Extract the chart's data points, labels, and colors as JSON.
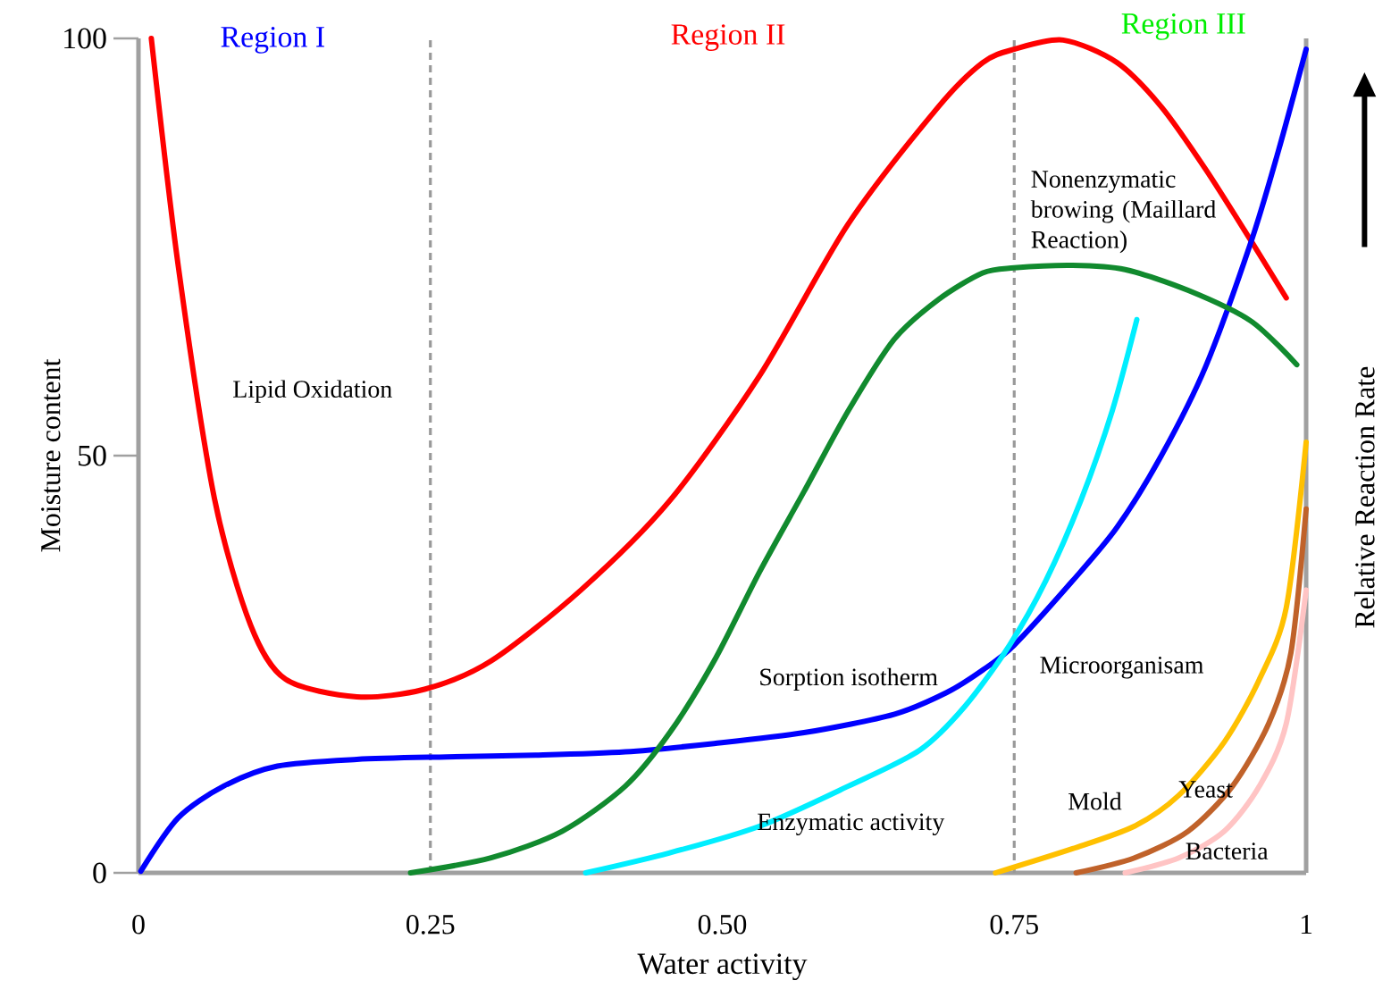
{
  "chart_data": {
    "type": "line",
    "xlabel": "Water activity",
    "ylabel": "Moisture content",
    "y2label": "Relative Reaction Rate",
    "xlim": [
      0,
      1
    ],
    "ylim": [
      0,
      100
    ],
    "xticks": [
      0,
      0.25,
      {
        "value": 0.5,
        "label": "0.50"
      },
      0.75,
      1
    ],
    "yticks": [
      0,
      50,
      100
    ],
    "marker": "none",
    "line_style": "solid",
    "series": [
      {
        "color": "#ff0000",
        "x": [
          0.011,
          0.034,
          0.065,
          0.096,
          0.126,
          0.187,
          0.245,
          0.302,
          0.379,
          0.455,
          0.532,
          0.608,
          0.685,
          0.723,
          0.75,
          0.792,
          0.838,
          0.876,
          0.914,
          0.953,
          0.983
        ],
        "values": [
          100,
          72.8,
          44.9,
          29.7,
          23.2,
          21.1,
          22,
          25.4,
          33.9,
          44.6,
          59.6,
          77.8,
          91.8,
          97.1,
          98.7,
          99.8,
          97.1,
          91.8,
          84.3,
          75.7,
          68.9
        ]
      },
      {
        "color": "#0000ff",
        "x": [
          0.002,
          0.034,
          0.073,
          0.119,
          0.187,
          0.264,
          0.34,
          0.417,
          0.493,
          0.57,
          0.647,
          0.692,
          0.723,
          0.75,
          0.8,
          0.838,
          0.876,
          0.914,
          0.953,
          0.976,
          1.0
        ],
        "values": [
          0.2,
          6.6,
          10.4,
          12.8,
          13.6,
          13.9,
          14.1,
          14.5,
          15.5,
          16.8,
          19,
          21.6,
          24.3,
          27.3,
          35,
          41.4,
          50,
          60.7,
          75.7,
          86.4,
          98.7
        ]
      },
      {
        "color": "#118a2e",
        "x": [
          0.233,
          0.302,
          0.363,
          0.417,
          0.455,
          0.493,
          0.532,
          0.57,
          0.608,
          0.647,
          0.685,
          0.723,
          0.75,
          0.8,
          0.845,
          0.899,
          0.953,
          0.992
        ],
        "values": [
          0,
          1.8,
          5,
          10.4,
          16.8,
          25.4,
          36.1,
          45.7,
          55.4,
          63.9,
          68.7,
          71.9,
          72.5,
          72.8,
          72.3,
          69.8,
          66.1,
          60.9
        ]
      },
      {
        "color": "#00eeff",
        "x": [
          0.383,
          0.455,
          0.532,
          0.608,
          0.669,
          0.708,
          0.746,
          0.777,
          0.807,
          0.834,
          0.855
        ],
        "values": [
          0,
          2.4,
          5.6,
          10.4,
          14.7,
          20,
          27.3,
          35,
          44.6,
          55.4,
          66.3
        ]
      },
      {
        "color": "#ffc000",
        "x": [
          0.734,
          0.8,
          0.853,
          0.891,
          0.93,
          0.96,
          0.983,
          1.0
        ],
        "values": [
          0,
          2.9,
          5.6,
          9.3,
          15.7,
          23.2,
          31.8,
          51.6
        ]
      },
      {
        "color": "#c0622a",
        "x": [
          0.803,
          0.853,
          0.899,
          0.937,
          0.968,
          0.987,
          1.0
        ],
        "values": [
          0,
          1.8,
          5,
          10.4,
          17.9,
          26.4,
          43.6
        ]
      },
      {
        "color": "#ffc4c4",
        "x": [
          0.845,
          0.891,
          0.93,
          0.96,
          0.983,
          1.0
        ],
        "values": [
          0,
          1.8,
          5,
          10.4,
          17.9,
          33.9
        ]
      }
    ],
    "ref_lines": [
      {
        "axis": "x",
        "value": 0.25,
        "color": "#999999",
        "line_style": "dashed"
      },
      {
        "axis": "x",
        "value": 0.75,
        "color": "#999999",
        "line_style": "dashed"
      }
    ],
    "annotations": [
      "Region I",
      "Region II",
      "Region III",
      "Lipid Oxidation",
      "Nonenzymatic browing (Maillard Reaction)",
      "Sorption isotherm",
      "Microorganisam",
      "Enzymatic activity",
      "Mold",
      "Yeast",
      "Bacteria"
    ]
  }
}
